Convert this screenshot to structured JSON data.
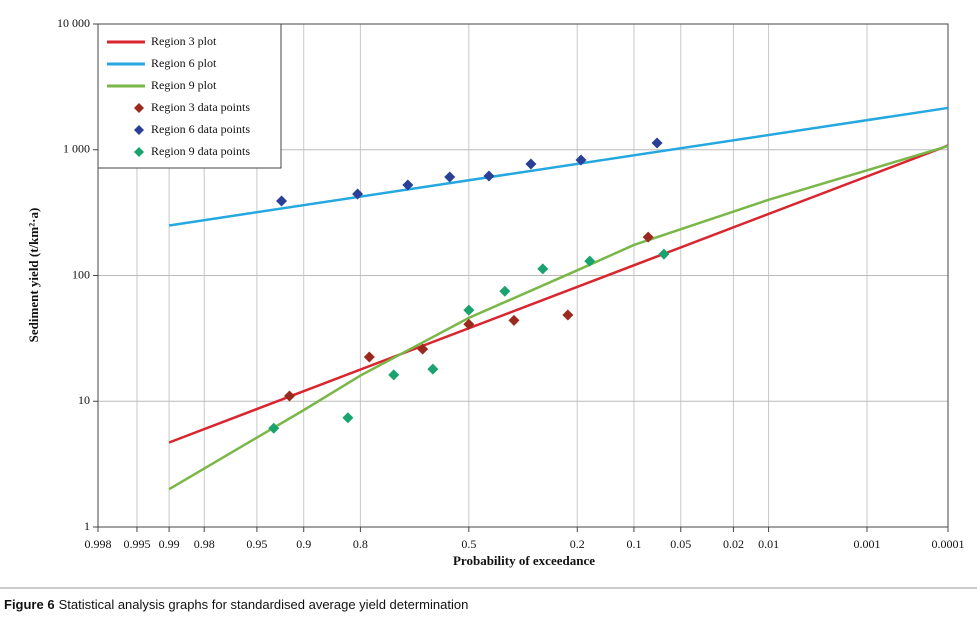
{
  "chart_data": {
    "type": "line",
    "xlabel": "Probability of exceedance",
    "ylabel": "Sediment yield (t/km²·a)",
    "x_scale": "normal-probability",
    "y_scale": "log",
    "grid": true,
    "xlim": [
      0.998,
      0.0001
    ],
    "ylim": [
      1,
      10000
    ],
    "xticks": [
      0.998,
      0.995,
      0.99,
      0.98,
      0.95,
      0.9,
      0.8,
      0.5,
      0.2,
      0.1,
      0.05,
      0.02,
      0.01,
      0.001,
      0.0001
    ],
    "yticks": [
      {
        "value": 10000,
        "label": "10 000"
      },
      {
        "value": 1000,
        "label": "1 000"
      },
      100,
      10,
      1
    ],
    "legend": "upper-left",
    "series": [
      {
        "name": "Region 3 plot",
        "kind": "line",
        "color": "#d9262e",
        "x": [
          0.99,
          0.0001
        ],
        "values": [
          4.7,
          1080
        ]
      },
      {
        "name": "Region 6 plot",
        "kind": "line",
        "color": "#25a8e0",
        "x": [
          0.99,
          0.0001
        ],
        "values": [
          250,
          2150
        ]
      },
      {
        "name": "Region 9 plot",
        "kind": "line",
        "color": "#7ab648",
        "x": [
          0.99,
          0.9,
          0.8,
          0.5,
          0.2,
          0.1,
          0.01,
          0.0001
        ],
        "values": [
          2,
          8.5,
          16,
          46,
          110,
          175,
          400,
          1070
        ]
      },
      {
        "name": "Region 3 data points",
        "kind": "points",
        "color": "#9b2a1e",
        "x": [
          0.918,
          0.78,
          0.64,
          0.5,
          0.363,
          0.221,
          0.082
        ],
        "values": [
          11,
          22.5,
          26,
          41,
          44,
          48.5,
          202
        ]
      },
      {
        "name": "Region 6 data points",
        "kind": "points",
        "color": "#2a3f96",
        "x": [
          0.927,
          0.806,
          0.682,
          0.559,
          0.438,
          0.315,
          0.192,
          0.072
        ],
        "values": [
          391,
          445,
          525,
          607,
          618,
          771,
          829,
          1132
        ]
      },
      {
        "name": "Region 9 data points",
        "kind": "points",
        "color": "#1aa36f",
        "x": [
          0.935,
          0.826,
          0.72,
          0.61,
          0.5,
          0.39,
          0.283,
          0.174,
          0.065
        ],
        "values": [
          6.1,
          7.4,
          16.2,
          18,
          53,
          75,
          113,
          130,
          148
        ]
      }
    ]
  },
  "caption": {
    "label": "Figure  6",
    "text": "Statistical analysis graphs for standardised average yield determination"
  }
}
